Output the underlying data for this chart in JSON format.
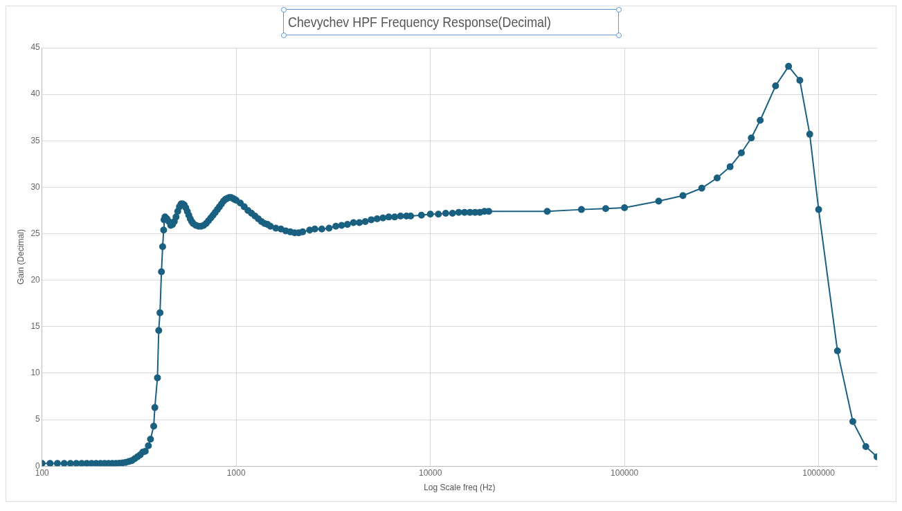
{
  "chart_data": {
    "type": "line",
    "title": "Chevychev HPF Frequency Response(Decimal)",
    "xlabel": "Log Scale freq (Hz)",
    "ylabel": "Gain (Decimal)",
    "log": "x",
    "grid": true,
    "marker": "circle",
    "legend": false,
    "xlim": [
      100,
      2000000
    ],
    "xticks": [
      100,
      1000,
      10000,
      100000,
      1000000
    ],
    "ylim": [
      0,
      45
    ],
    "yticks": [
      0,
      5,
      10,
      15,
      20,
      25,
      30,
      35,
      40,
      45
    ],
    "series": [
      {
        "color": "#1a6080",
        "x": [
          100,
          110,
          120,
          130,
          140,
          150,
          160,
          170,
          180,
          190,
          200,
          210,
          220,
          230,
          240,
          250,
          260,
          270,
          280,
          290,
          300,
          310,
          320,
          330,
          340,
          353,
          362,
          376,
          381,
          393,
          399,
          405,
          412,
          418,
          423,
          425,
          430,
          440,
          450,
          460,
          470,
          480,
          490,
          500,
          510,
          520,
          530,
          540,
          550,
          560,
          570,
          580,
          590,
          600,
          620,
          640,
          660,
          680,
          700,
          720,
          740,
          760,
          780,
          800,
          820,
          840,
          860,
          880,
          900,
          920,
          940,
          960,
          980,
          1000,
          1050,
          1100,
          1150,
          1200,
          1250,
          1300,
          1350,
          1400,
          1450,
          1500,
          1600,
          1700,
          1800,
          1900,
          2000,
          2100,
          2200,
          2390,
          2540,
          2760,
          3010,
          3260,
          3490,
          3740,
          4020,
          4310,
          4620,
          4960,
          5320,
          5700,
          6110,
          6550,
          7020,
          7530,
          7920,
          9000,
          10000,
          11000,
          12000,
          13000,
          14000,
          15000,
          16000,
          17000,
          18000,
          19000,
          20000,
          40000,
          60000,
          80000,
          100000,
          150000,
          200000,
          250000,
          300000,
          350000,
          400000,
          450000,
          500000,
          600000,
          700000,
          800000,
          900000,
          1000000,
          1250000,
          1500000,
          1750000,
          2000000
        ],
        "values": [
          0.3,
          0.3,
          0.3,
          0.3,
          0.3,
          0.3,
          0.3,
          0.3,
          0.3,
          0.3,
          0.3,
          0.3,
          0.3,
          0.3,
          0.3,
          0.32,
          0.35,
          0.4,
          0.5,
          0.6,
          0.8,
          1.0,
          1.2,
          1.5,
          1.6,
          2.2,
          2.9,
          4.3,
          6.3,
          9.5,
          14.6,
          16.5,
          20.9,
          23.6,
          25.4,
          26.5,
          26.8,
          26.6,
          26.3,
          25.9,
          26.0,
          26.3,
          26.8,
          27.4,
          27.9,
          28.2,
          28.2,
          28.1,
          27.8,
          27.4,
          27.0,
          26.6,
          26.3,
          26.1,
          25.9,
          25.8,
          25.8,
          25.9,
          26.1,
          26.4,
          26.7,
          27.0,
          27.3,
          27.6,
          27.9,
          28.2,
          28.5,
          28.7,
          28.8,
          28.9,
          28.9,
          28.8,
          28.7,
          28.6,
          28.3,
          27.9,
          27.5,
          27.2,
          26.9,
          26.6,
          26.3,
          26.1,
          26.0,
          25.8,
          25.6,
          25.5,
          25.3,
          25.2,
          25.1,
          25.1,
          25.2,
          25.4,
          25.5,
          25.5,
          25.6,
          25.8,
          25.9,
          26.0,
          26.2,
          26.2,
          26.3,
          26.5,
          26.6,
          26.7,
          26.8,
          26.8,
          26.9,
          26.9,
          26.9,
          27.0,
          27.1,
          27.1,
          27.2,
          27.2,
          27.3,
          27.3,
          27.3,
          27.3,
          27.3,
          27.4,
          27.4,
          27.4,
          27.6,
          27.7,
          27.8,
          28.5,
          29.1,
          29.9,
          31.0,
          32.2,
          33.7,
          35.3,
          37.2,
          40.9,
          43.0,
          41.5,
          35.7,
          27.6,
          12.4,
          4.8,
          2.1,
          1.0
        ]
      }
    ]
  }
}
